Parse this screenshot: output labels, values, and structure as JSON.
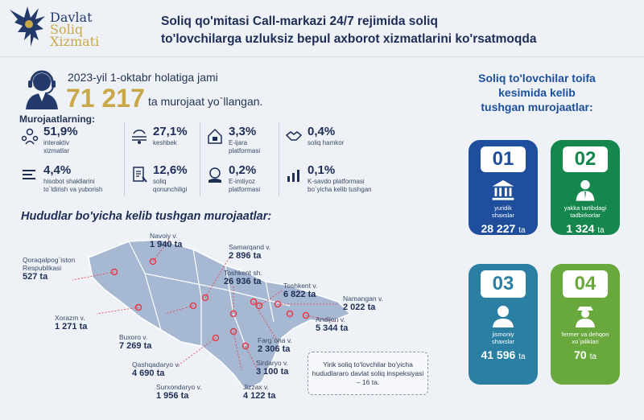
{
  "header": {
    "logo_line1": "Davlat",
    "logo_line2": "Soliq",
    "logo_line3": "Xizmati",
    "headline_line1": "Soliq qo'mitasi Call-markazi 24/7 rejimida soliq",
    "headline_line2": "to'lovchilarga uzluksiz bepul axborot xizmatlarini ko'rsatmoqda"
  },
  "summary": {
    "date_line": "2023-yil 1-oktabr holatiga jami",
    "total": "71 217",
    "total_tail": "ta murojaat yo`llangan.",
    "breakdown_title": "Murojaatlarning:"
  },
  "stats": [
    {
      "pct": "51,9%",
      "label1": "interaktiv",
      "label2": "xizmatlar",
      "icon": "people-icon"
    },
    {
      "pct": "4,4%",
      "label1": "hisobot shakllarini",
      "label2": "to`ldirish va yuborish",
      "icon": "lines-icon"
    },
    {
      "pct": "27,1%",
      "label1": "keshbek",
      "label2": "",
      "icon": "cashback-icon"
    },
    {
      "pct": "12,6%",
      "label1": "soliq",
      "label2": "qonunchiligi",
      "icon": "document-icon"
    },
    {
      "pct": "3,3%",
      "label1": "E-ijara",
      "label2": "platformasi",
      "icon": "house-icon"
    },
    {
      "pct": "0,2%",
      "label1": "E-imtiyoz",
      "label2": "platformasi",
      "icon": "badge-icon"
    },
    {
      "pct": "0,4%",
      "label1": "soliq hamkor",
      "label2": "",
      "icon": "handshake-icon"
    },
    {
      "pct": "0,1%",
      "label1": "K-savdo platformasi",
      "label2": "bo`yicha kelib tushgan",
      "icon": "bar-chart-icon"
    }
  ],
  "map": {
    "title": "Hududlar bo'yicha kelib tushgan murojaatlar:",
    "regions": [
      {
        "name": "Navoiy v.",
        "value": "1 940 ta"
      },
      {
        "name": "Samarqand v.",
        "value": "2 896 ta"
      },
      {
        "name": "Qoraqalpog`iston",
        "name2": "Respublikasi",
        "value": "527 ta"
      },
      {
        "name": "Toshkent sh.",
        "value": "26 936 ta"
      },
      {
        "name": "Toshkent v.",
        "value": "6 822 ta"
      },
      {
        "name": "Namangan v.",
        "value": "2 022 ta"
      },
      {
        "name": "Xorazm v.",
        "value": "1 271 ta"
      },
      {
        "name": "Andijon v.",
        "value": "5 344 ta"
      },
      {
        "name": "Buxoro v.",
        "value": "7 269 ta"
      },
      {
        "name": "Farg`ona v.",
        "value": "2 306 ta"
      },
      {
        "name": "Qashqadaryo v.",
        "value": "4 690 ta"
      },
      {
        "name": "Sirdaryo v.",
        "value": "3 100 ta"
      },
      {
        "name": "Surxondaryo v.",
        "value": "1 956 ta"
      },
      {
        "name": "Jizzax v.",
        "value": "4 122 ta"
      }
    ],
    "note": "Yirik soliq to'lovchilar bo'yicha hududlararo davlat soliq inspeksiyasi – 16 ta."
  },
  "categories": {
    "title_line1": "Soliq to'lovchilar toifa",
    "title_line2": "kesimida kelib",
    "title_line3": "tushgan murojaatlar:",
    "items": [
      {
        "num": "01",
        "label1": "yuridik",
        "label2": "shaxslar",
        "value": "28 227",
        "unit": "ta",
        "color": "#1f4e9c",
        "icon": "bank-icon"
      },
      {
        "num": "02",
        "label1": "yakka tartibdagi",
        "label2": "tadbirkorlar",
        "value": "1 324",
        "unit": "ta",
        "color": "#16874c",
        "icon": "businessman-icon"
      },
      {
        "num": "03",
        "label1": "jismoniy",
        "label2": "shaxslar",
        "value": "41 596",
        "unit": "ta",
        "color": "#2a7fa3",
        "icon": "person-icon"
      },
      {
        "num": "04",
        "label1": "fermer va dehqon",
        "label2": "xo`jaliklari",
        "value": "70",
        "unit": "ta",
        "color": "#69a83c",
        "icon": "farmer-icon"
      }
    ]
  }
}
